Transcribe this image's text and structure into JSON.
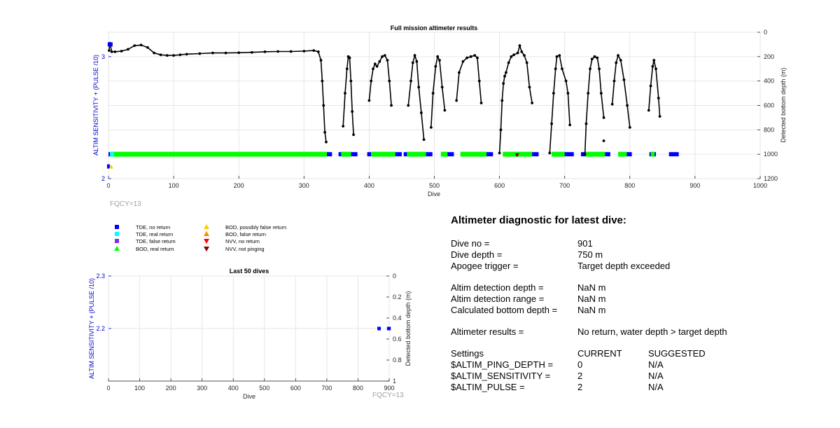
{
  "chart_data": [
    {
      "type": "scatter",
      "title": "Full mission altimeter results",
      "xlabel": "Dive",
      "ylabel_left": "ALTIM SENSITIVITY + (PULSE /10)",
      "ylabel_right": "Detected bottom depth (m)",
      "xlim": [
        0,
        1000
      ],
      "ylim_left": [
        2,
        3.2
      ],
      "ylim_right": [
        0,
        1200
      ],
      "right_axis_reversed": true,
      "grid": true,
      "xticks": [
        "0",
        "100",
        "200",
        "300",
        "400",
        "500",
        "600",
        "700",
        "800",
        "900",
        "1000"
      ],
      "yticks_left": [
        "2",
        "3"
      ],
      "yticks_right": [
        "0",
        "200",
        "400",
        "600",
        "800",
        "1000",
        "1200"
      ],
      "settings_series": [
        {
          "name": "sensitivity+pulse",
          "points": [
            [
              2,
              3.1
            ],
            [
              5,
              3.1
            ],
            [
              1,
              2.1
            ],
            [
              4,
              2.1
            ]
          ]
        }
      ],
      "bottom_depth_series": [
        {
          "name": "TDE, real return",
          "segments": [
            [
              [
                1,
                150
              ],
              [
                2,
                90
              ],
              [
                3,
                110
              ],
              [
                5,
                160
              ],
              [
                10,
                160
              ],
              [
                20,
                155
              ],
              [
                30,
                140
              ],
              [
                40,
                110
              ],
              [
                50,
                105
              ],
              [
                60,
                125
              ],
              [
                70,
                170
              ],
              [
                80,
                185
              ],
              [
                90,
                190
              ],
              [
                100,
                190
              ],
              [
                110,
                185
              ],
              [
                120,
                180
              ],
              [
                140,
                175
              ],
              [
                160,
                170
              ],
              [
                180,
                170
              ],
              [
                200,
                168
              ],
              [
                220,
                165
              ],
              [
                240,
                160
              ],
              [
                260,
                158
              ],
              [
                280,
                158
              ],
              [
                300,
                155
              ],
              [
                315,
                150
              ],
              [
                322,
                160
              ],
              [
                326,
                230
              ],
              [
                328,
                400
              ],
              [
                330,
                600
              ],
              [
                332,
                820
              ],
              [
                334,
                900
              ]
            ],
            [
              [
                360,
                770
              ],
              [
                363,
                500
              ],
              [
                366,
                300
              ],
              [
                368,
                200
              ],
              [
                370,
                210
              ],
              [
                372,
                400
              ],
              [
                374,
                650
              ],
              [
                376,
                840
              ]
            ],
            [
              [
                400,
                560
              ],
              [
                403,
                400
              ],
              [
                406,
                300
              ],
              [
                409,
                260
              ],
              [
                412,
                280
              ],
              [
                416,
                240
              ],
              [
                420,
                200
              ],
              [
                424,
                190
              ],
              [
                428,
                230
              ],
              [
                431,
                400
              ],
              [
                434,
                600
              ]
            ],
            [
              [
                460,
                600
              ],
              [
                464,
                400
              ],
              [
                467,
                250
              ],
              [
                470,
                190
              ],
              [
                473,
                240
              ],
              [
                476,
                450
              ],
              [
                480,
                660
              ],
              [
                484,
                880
              ]
            ],
            [
              [
                495,
                780
              ],
              [
                498,
                500
              ],
              [
                502,
                280
              ],
              [
                505,
                200
              ],
              [
                508,
                230
              ],
              [
                512,
                450
              ],
              [
                516,
                640
              ]
            ],
            [
              [
                534,
                560
              ],
              [
                538,
                330
              ],
              [
                544,
                240
              ],
              [
                550,
                210
              ],
              [
                556,
                200
              ],
              [
                562,
                190
              ],
              [
                566,
                210
              ],
              [
                569,
                400
              ],
              [
                572,
                580
              ]
            ],
            [
              [
                600,
                990
              ],
              [
                602,
                800
              ],
              [
                604,
                560
              ],
              [
                606,
                420
              ],
              [
                608,
                360
              ],
              [
                610,
                330
              ],
              [
                614,
                250
              ],
              [
                618,
                200
              ],
              [
                622,
                185
              ],
              [
                628,
                170
              ],
              [
                631,
                110
              ],
              [
                634,
                160
              ],
              [
                638,
                190
              ],
              [
                642,
                250
              ],
              [
                646,
                450
              ],
              [
                650,
                580
              ]
            ],
            [
              [
                677,
                990
              ],
              [
                680,
                750
              ],
              [
                683,
                500
              ],
              [
                686,
                300
              ],
              [
                688,
                200
              ],
              [
                692,
                190
              ],
              [
                696,
                300
              ],
              [
                702,
                400
              ],
              [
                705,
                500
              ],
              [
                708,
                760
              ]
            ],
            [
              [
                731,
                1000
              ],
              [
                733,
                750
              ],
              [
                736,
                500
              ],
              [
                739,
                300
              ],
              [
                742,
                220
              ],
              [
                746,
                200
              ],
              [
                750,
                210
              ],
              [
                753,
                300
              ],
              [
                756,
                500
              ],
              [
                760,
                700
              ]
            ],
            [
              [
                773,
                590
              ],
              [
                776,
                400
              ],
              [
                779,
                250
              ],
              [
                782,
                190
              ],
              [
                786,
                230
              ],
              [
                791,
                390
              ],
              [
                796,
                600
              ],
              [
                800,
                780
              ]
            ],
            [
              [
                829,
                640
              ],
              [
                832,
                440
              ],
              [
                835,
                280
              ],
              [
                837,
                230
              ],
              [
                840,
                300
              ],
              [
                844,
                540
              ],
              [
                846,
                690
              ]
            ],
            [
              [
                760,
                890
              ]
            ]
          ]
        },
        {
          "name": "BOD, real return",
          "color": "#00ff00",
          "bands": [
            [
              3,
              335
            ],
            [
              357,
              372
            ],
            [
              403,
              440
            ],
            [
              458,
              487
            ],
            [
              510,
              520
            ],
            [
              540,
              580
            ],
            [
              605,
              650
            ],
            [
              680,
              700
            ],
            [
              732,
              762
            ],
            [
              782,
              795
            ],
            [
              832,
              838
            ]
          ]
        },
        {
          "name": "TDE, no return",
          "color": "#0000ff",
          "bands": [
            [
              0,
              8
            ],
            [
              335,
              343
            ],
            [
              353,
              360
            ],
            [
              372,
              382
            ],
            [
              397,
              403
            ],
            [
              440,
              450
            ],
            [
              453,
              458
            ],
            [
              487,
              497
            ],
            [
              520,
              530
            ],
            [
              570,
              575
            ],
            [
              580,
              590
            ],
            [
              645,
              660
            ],
            [
              697,
              714
            ],
            [
              725,
              732
            ],
            [
              758,
              770
            ],
            [
              795,
              803
            ],
            [
              830,
              840
            ],
            [
              860,
              875
            ]
          ]
        },
        {
          "name": "NVV, not pinging",
          "color": "#800000",
          "points": [
            [
              627,
              1010
            ]
          ]
        }
      ],
      "annotation": "FQCY=13"
    },
    {
      "type": "scatter",
      "title": "Last 50 dives",
      "xlabel": "Dive",
      "ylabel_left": "ALTIM SENSITIVITY + (PULSE /10)",
      "ylabel_right": "Detected bottom depth (m)",
      "xlim": [
        0,
        900
      ],
      "ylim_left": [
        2.1,
        2.3
      ],
      "ylim_right": [
        0,
        1
      ],
      "right_axis_reversed": true,
      "grid": true,
      "xticks": [
        "0",
        "100",
        "200",
        "300",
        "400",
        "500",
        "600",
        "700",
        "800",
        "900"
      ],
      "yticks_left": [
        "2.2",
        "2.3"
      ],
      "yticks_right": [
        "0",
        "0.2",
        "0.4",
        "0.6",
        "0.8",
        "1"
      ],
      "series": [
        {
          "name": "TDE, no return",
          "color": "#0000ff",
          "bands": [
            [
              862,
              873
            ],
            [
              893,
              905
            ]
          ],
          "y_right": 0.5
        }
      ],
      "annotation": "FQCY=13"
    }
  ],
  "legend": {
    "entries": [
      {
        "label": "TDE, no return",
        "marker": "square",
        "color": "#0000ff"
      },
      {
        "label": "TDE, real return",
        "marker": "square",
        "color": "#00ffff"
      },
      {
        "label": "TDE, false return",
        "marker": "square",
        "color": "#8a2be2"
      },
      {
        "label": "BOD, real return",
        "marker": "triangle-up",
        "color": "#00ff00"
      },
      {
        "label": "BOD, possibly false return",
        "marker": "triangle-up",
        "color": "#ffcc00"
      },
      {
        "label": "BOD, false return",
        "marker": "triangle-up",
        "color": "#ff8800"
      },
      {
        "label": "NVV, no return",
        "marker": "triangle-down",
        "color": "#ff0000"
      },
      {
        "label": "NVV, not pinging",
        "marker": "triangle-down",
        "color": "#800000"
      }
    ]
  },
  "diagnostic": {
    "title": "Altimeter diagnostic for latest dive:",
    "dive_no_label": "Dive no =",
    "dive_no_value": "901",
    "dive_depth_label": "Dive depth =",
    "dive_depth_value": "750 m",
    "apogee_label": "Apogee trigger =",
    "apogee_value": "Target depth exceeded",
    "det_depth_label": "Altim detection depth =",
    "det_depth_value": "NaN m",
    "det_range_label": "Altim detection range =",
    "det_range_value": "NaN m",
    "calc_depth_label": "Calculated bottom depth =",
    "calc_depth_value": "NaN m",
    "results_label": "Altimeter results =",
    "results_value": "No return, water depth > target depth",
    "settings_label": "Settings",
    "current_label": "CURRENT",
    "suggested_label": "SUGGESTED",
    "settings_rows": [
      {
        "name": "$ALTIM_PING_DEPTH =",
        "current": "0",
        "suggested": "N/A"
      },
      {
        "name": "$ALTIM_SENSITIVITY =",
        "current": "2",
        "suggested": "N/A"
      },
      {
        "name": "$ALTIM_PULSE =",
        "current": "2",
        "suggested": "N/A"
      }
    ]
  },
  "colors": {
    "axis_left": "#0000cc",
    "trace": "#000000",
    "grid": "#e6e6e6",
    "annotation": "#a0a0a0"
  }
}
